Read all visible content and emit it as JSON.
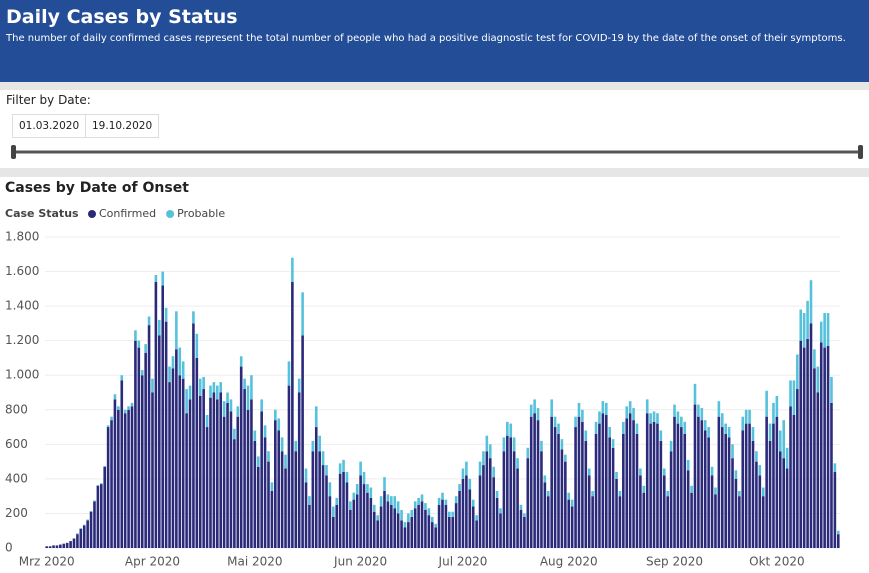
{
  "header": {
    "title": "Daily Cases by Status",
    "subtitle": "The number of daily confirmed cases represent the total number of people who had a positive diagnostic test for COVID-19 by the date of the onset of their symptoms."
  },
  "filter": {
    "label": "Filter by Date:",
    "start": "01.03.2020",
    "end": "19.10.2020"
  },
  "chart_data": {
    "type": "stacked_bar",
    "title": "Cases by Date of Onset",
    "legend_title": "Case Status",
    "categories": [
      "Mrz 2020",
      null,
      null,
      null,
      null,
      null,
      null,
      null,
      null,
      null,
      null,
      null,
      null,
      null,
      null,
      null,
      null,
      null,
      null,
      null,
      null,
      null,
      null,
      null,
      null,
      null,
      null,
      null,
      null,
      null,
      null,
      "Apr 2020",
      null,
      null,
      null,
      null,
      null,
      null,
      null,
      null,
      null,
      null,
      null,
      null,
      null,
      null,
      null,
      null,
      null,
      null,
      null,
      null,
      null,
      null,
      null,
      null,
      null,
      null,
      null,
      null,
      null,
      "Mai 2020",
      null,
      null,
      null,
      null,
      null,
      null,
      null,
      null,
      null,
      null,
      null,
      null,
      null,
      null,
      null,
      null,
      null,
      null,
      null,
      null,
      null,
      null,
      null,
      null,
      null,
      null,
      null,
      null,
      null,
      null,
      "Jun 2020",
      null,
      null,
      null,
      null,
      null,
      null,
      null,
      null,
      null,
      null,
      null,
      null,
      null,
      null,
      null,
      null,
      null,
      null,
      null,
      null,
      null,
      null,
      null,
      null,
      null,
      null,
      null,
      null,
      null,
      "Jul 2020",
      null,
      null,
      null,
      null,
      null,
      null,
      null,
      null,
      null,
      null,
      null,
      null,
      null,
      null,
      null,
      null,
      null,
      null,
      null,
      null,
      null,
      null,
      null,
      null,
      null,
      null,
      null,
      null,
      null,
      null,
      "Aug 2020",
      null,
      null,
      null,
      null,
      null,
      null,
      null,
      null,
      null,
      null,
      null,
      null,
      null,
      null,
      null,
      null,
      null,
      null,
      null,
      null,
      null,
      null,
      null,
      null,
      null,
      null,
      null,
      null,
      null,
      null,
      "Sep 2020",
      null,
      null,
      null,
      null,
      null,
      null,
      null,
      null,
      null,
      null,
      null,
      null,
      null,
      null,
      null,
      null,
      null,
      null,
      null,
      null,
      null,
      null,
      null,
      null,
      null,
      null,
      null,
      null,
      null,
      "Okt 2020",
      null,
      null,
      null,
      null,
      null,
      null,
      null,
      null,
      null,
      null,
      null,
      null,
      null,
      null,
      null,
      null,
      null,
      null
    ],
    "series": [
      {
        "name": "Confirmed",
        "color": "#2b2a7a",
        "values": [
          10,
          10,
          15,
          15,
          20,
          25,
          30,
          40,
          55,
          80,
          110,
          130,
          160,
          210,
          270,
          360,
          370,
          470,
          700,
          740,
          860,
          800,
          970,
          780,
          800,
          820,
          1200,
          1160,
          1000,
          1130,
          1290,
          900,
          1540,
          1230,
          1520,
          1310,
          960,
          1040,
          1150,
          1000,
          980,
          780,
          860,
          1300,
          1100,
          880,
          920,
          700,
          870,
          900,
          860,
          900,
          760,
          840,
          790,
          630,
          760,
          1050,
          920,
          800,
          860,
          620,
          470,
          790,
          640,
          500,
          330,
          740,
          680,
          560,
          460,
          940,
          1540,
          560,
          900,
          1230,
          380,
          250,
          560,
          700,
          560,
          480,
          420,
          300,
          180,
          250,
          430,
          440,
          380,
          220,
          280,
          310,
          420,
          370,
          320,
          290,
          210,
          160,
          240,
          330,
          270,
          250,
          230,
          200,
          160,
          120,
          150,
          180,
          230,
          250,
          270,
          220,
          190,
          150,
          120,
          250,
          280,
          250,
          180,
          180,
          260,
          330,
          400,
          420,
          340,
          240,
          160,
          420,
          480,
          560,
          520,
          410,
          290,
          200,
          560,
          650,
          640,
          560,
          460,
          220,
          180,
          520,
          760,
          780,
          740,
          560,
          380,
          300,
          760,
          700,
          660,
          570,
          500,
          280,
          240,
          700,
          760,
          730,
          620,
          420,
          300,
          660,
          720,
          780,
          770,
          640,
          580,
          400,
          300,
          660,
          750,
          780,
          740,
          660,
          420,
          320,
          780,
          720,
          730,
          720,
          620,
          420,
          300,
          560,
          760,
          720,
          700,
          660,
          450,
          320,
          830,
          760,
          740,
          680,
          640,
          420,
          310,
          760,
          700,
          660,
          640,
          520,
          400,
          300,
          680,
          720,
          720,
          620,
          500,
          420,
          300,
          760,
          620,
          720,
          760,
          560,
          520,
          460,
          820,
          770,
          920,
          1200,
          1160,
          1210,
          1300,
          1040,
          900,
          1190,
          1160,
          1170,
          840,
          440,
          80
        ]
      },
      {
        "name": "Probable",
        "color": "#56c1db",
        "values": [
          0,
          0,
          0,
          0,
          0,
          0,
          0,
          0,
          0,
          5,
          5,
          5,
          5,
          5,
          5,
          5,
          5,
          5,
          10,
          20,
          30,
          20,
          30,
          20,
          20,
          20,
          60,
          40,
          30,
          50,
          50,
          80,
          40,
          90,
          80,
          80,
          90,
          70,
          220,
          160,
          100,
          140,
          80,
          70,
          140,
          100,
          70,
          70,
          70,
          60,
          80,
          60,
          90,
          60,
          70,
          60,
          60,
          60,
          60,
          140,
          140,
          60,
          60,
          70,
          70,
          60,
          50,
          60,
          70,
          80,
          80,
          140,
          140,
          60,
          80,
          250,
          80,
          50,
          60,
          120,
          90,
          80,
          60,
          80,
          60,
          40,
          60,
          70,
          60,
          50,
          40,
          60,
          80,
          70,
          50,
          60,
          40,
          30,
          60,
          80,
          40,
          50,
          70,
          70,
          60,
          30,
          50,
          40,
          40,
          40,
          40,
          40,
          40,
          30,
          20,
          40,
          40,
          30,
          30,
          30,
          40,
          40,
          60,
          80,
          60,
          40,
          30,
          80,
          80,
          90,
          80,
          60,
          40,
          30,
          80,
          80,
          80,
          80,
          60,
          30,
          20,
          60,
          70,
          80,
          70,
          60,
          40,
          30,
          100,
          60,
          60,
          60,
          40,
          40,
          40,
          60,
          80,
          70,
          60,
          40,
          30,
          70,
          70,
          70,
          70,
          60,
          50,
          40,
          30,
          70,
          70,
          70,
          70,
          60,
          40,
          40,
          80,
          60,
          60,
          60,
          60,
          40,
          30,
          60,
          70,
          70,
          60,
          70,
          60,
          40,
          120,
          70,
          70,
          60,
          60,
          50,
          40,
          90,
          80,
          60,
          60,
          80,
          50,
          30,
          80,
          80,
          80,
          80,
          60,
          60,
          50,
          150,
          100,
          120,
          120,
          120,
          220,
          120,
          150,
          200,
          200,
          180,
          200,
          220,
          250,
          110,
          150,
          120,
          200,
          190,
          150,
          50,
          20
        ]
      }
    ],
    "ylim": [
      0,
      1800
    ],
    "yticks": [
      0,
      200,
      400,
      600,
      800,
      {
        "value": 1000,
        "label": "1.000"
      },
      {
        "value": 1200,
        "label": "1.200"
      },
      {
        "value": 1400,
        "label": "1.400"
      },
      {
        "value": 1600,
        "label": "1.600"
      },
      {
        "value": 1800,
        "label": "1.800"
      }
    ],
    "grid": true
  }
}
